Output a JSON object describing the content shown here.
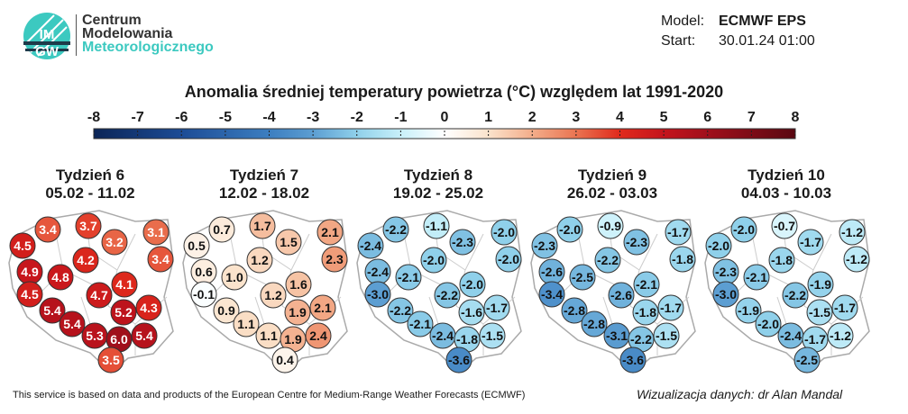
{
  "logo": {
    "line1": "Centrum",
    "line2": "Modelowania",
    "line3": "Meteorologicznego",
    "mark_text": "IMGW"
  },
  "model": {
    "model_label": "Model:",
    "model_value": "ECMWF EPS",
    "start_label": "Start:",
    "start_value": "30.01.24 01:00"
  },
  "title": "Anomalia średniej temperatury powietrza (°C) względem lat 1991-2020",
  "colorbar": {
    "ticks": [
      "-8",
      "-7",
      "-6",
      "-5",
      "-4",
      "-3",
      "-2",
      "-1",
      "0",
      "1",
      "2",
      "3",
      "4",
      "5",
      "6",
      "7",
      "8"
    ],
    "min": -8,
    "max": 8,
    "stops": [
      [
        -8,
        "#0b2557"
      ],
      [
        -6,
        "#1c4c96"
      ],
      [
        -4,
        "#3c7ec0"
      ],
      [
        -3,
        "#5c9ed2"
      ],
      [
        -2,
        "#8fd0ea"
      ],
      [
        -1,
        "#c8f0fa"
      ],
      [
        0,
        "#ffffff"
      ],
      [
        1,
        "#fbe3cc"
      ],
      [
        2,
        "#f3ad8a"
      ],
      [
        3,
        "#ea7451"
      ],
      [
        4,
        "#e02a1c"
      ],
      [
        5,
        "#c4141c"
      ],
      [
        6,
        "#a00f1b"
      ],
      [
        8,
        "#5a0812"
      ]
    ]
  },
  "weeks": [
    {
      "name": "Tydzień 6",
      "dates": "05.02 - 11.02",
      "values": [
        "3.4",
        "3.7",
        "3.2",
        "3.1",
        "4.5",
        "3.4",
        "4.2",
        "4.9",
        "4.8",
        "4.1",
        "4.5",
        "4.7",
        "5.4",
        "5.2",
        "4.3",
        "5.4",
        "5.3",
        "6.0",
        "5.4",
        "3.5"
      ]
    },
    {
      "name": "Tydzień 7",
      "dates": "12.02 - 18.02",
      "values": [
        "0.7",
        "1.7",
        "1.5",
        "2.1",
        "0.5",
        "2.3",
        "1.2",
        "0.6",
        "1.0",
        "1.6",
        "-0.1",
        "1.2",
        "0.9",
        "1.9",
        "2.1",
        "1.1",
        "1.1",
        "1.9",
        "2.4",
        "0.4"
      ]
    },
    {
      "name": "Tydzień 8",
      "dates": "19.02 - 25.02",
      "values": [
        "-2.2",
        "-1.1",
        "-2.3",
        "-2.0",
        "-2.4",
        "-2.0",
        "-2.0",
        "-2.4",
        "-2.1",
        "-2.0",
        "-3.0",
        "-2.2",
        "-2.2",
        "-1.6",
        "-1.7",
        "-2.1",
        "-2.4",
        "-1.8",
        "-1.5",
        "-3.6"
      ]
    },
    {
      "name": "Tydzień 9",
      "dates": "26.02 - 03.03",
      "values": [
        "-2.0",
        "-0.9",
        "-2.3",
        "-1.7",
        "-2.3",
        "-1.8",
        "-2.2",
        "-2.6",
        "-2.5",
        "-2.1",
        "-3.4",
        "-2.6",
        "-2.8",
        "-1.8",
        "-1.7",
        "-2.8",
        "-3.1",
        "-2.2",
        "-1.5",
        "-3.6"
      ]
    },
    {
      "name": "Tydzień 10",
      "dates": "04.03 - 10.03",
      "values": [
        "-2.0",
        "-0.7",
        "-1.7",
        "-1.2",
        "-2.0",
        "-1.2",
        "-1.8",
        "-2.3",
        "-2.1",
        "-1.9",
        "-3.0",
        "-2.2",
        "-1.9",
        "-1.5",
        "-1.7",
        "-2.0",
        "-2.4",
        "-1.7",
        "-1.2",
        "-2.5"
      ]
    }
  ],
  "footer": {
    "disclaimer": "This service is based on data and products of the European Centre for Medium-Range Weather Forecasts (ECMWF)",
    "credit": "Wizualizacja danych: dr Alan Mandal"
  }
}
